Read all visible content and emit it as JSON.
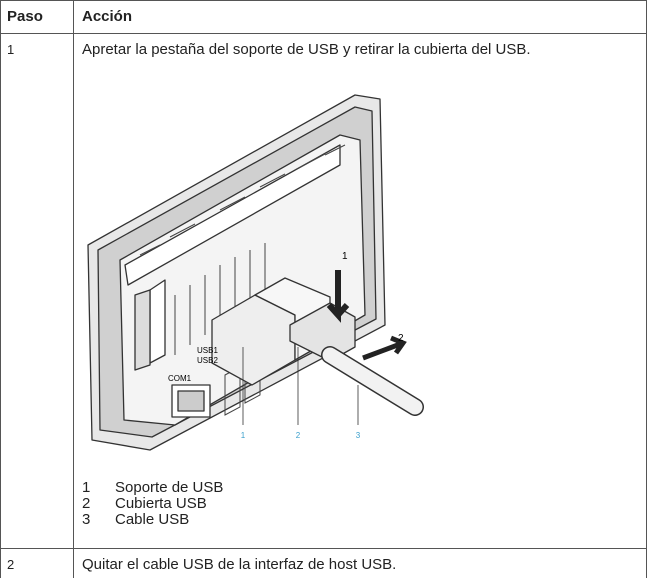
{
  "table": {
    "header": [
      "Paso",
      "Acción"
    ],
    "rows": [
      {
        "step": "1",
        "action": "Apretar la pestaña del soporte de USB y retirar la cubierta del USB.",
        "figure": {
          "arrows": [
            "1",
            "2"
          ],
          "callouts": [
            "1",
            "2",
            "3"
          ],
          "ports": [
            "COM1",
            "USB1",
            "USB2"
          ]
        },
        "legend": [
          {
            "number": "1",
            "text": "Soporte de USB"
          },
          {
            "number": "2",
            "text": "Cubierta USB"
          },
          {
            "number": "3",
            "text": "Cable USB"
          }
        ]
      },
      {
        "step": "2",
        "action": "Quitar el cable USB de la interfaz de host USB."
      }
    ]
  }
}
